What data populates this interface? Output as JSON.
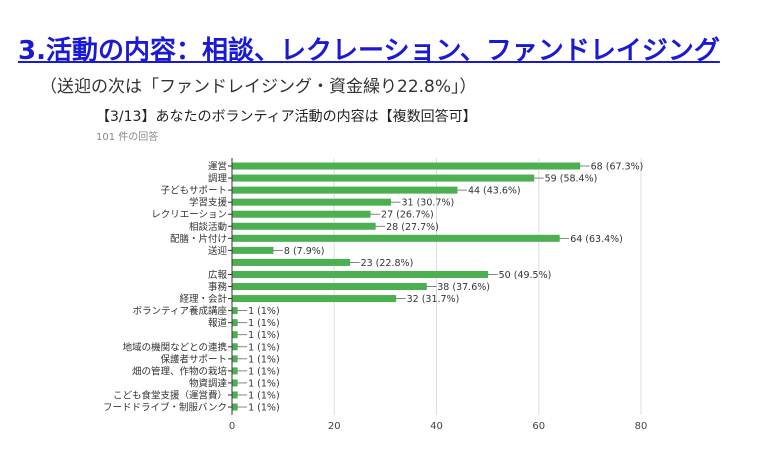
{
  "slide": {
    "title": "3.活動の内容：相談、レクレーション、ファンドレイジング",
    "subtitle": "（送迎の次は「ファンドレイジング・資金繰り22.8%」）"
  },
  "chart_data": {
    "type": "bar",
    "orientation": "horizontal",
    "title": "【3/13】あなたのボランティア活動の内容は【複数回答可】",
    "response_note": "101 件の回答",
    "categories": [
      "運営",
      "調理",
      "子どもサポート",
      "学習支援",
      "レクリエーション",
      "相談活動",
      "配膳・片付け",
      "送迎",
      "",
      "広報",
      "事務",
      "経理・会計",
      "ボランティア養成講座",
      "報道",
      "",
      "地域の機関などとの連携",
      "保護者サポート",
      "畑の管理、作物の栽培",
      "物資調達",
      "こども食堂支援（運営費）",
      "フードドライブ・制服バンク"
    ],
    "values": [
      68,
      59,
      44,
      31,
      27,
      28,
      64,
      8,
      23,
      50,
      38,
      32,
      1,
      1,
      1,
      1,
      1,
      1,
      1,
      1,
      1
    ],
    "data_labels": [
      "68 (67.3%)",
      "59 (58.4%)",
      "44 (43.6%)",
      "31 (30.7%)",
      "27 (26.7%)",
      "28 (27.7%)",
      "64 (63.4%)",
      "8 (7.9%)",
      "23 (22.8%)",
      "50 (49.5%)",
      "38 (37.6%)",
      "32 (31.7%)",
      "1 (1%)",
      "1 (1%)",
      "1 (1%)",
      "1 (1%)",
      "1 (1%)",
      "1 (1%)",
      "1 (1%)",
      "1 (1%)",
      "1 (1%)"
    ],
    "xlim": [
      0,
      80
    ],
    "xticks": [
      "0",
      "20",
      "40",
      "60",
      "80"
    ],
    "grid": true,
    "bar_color": "#4caf50"
  }
}
